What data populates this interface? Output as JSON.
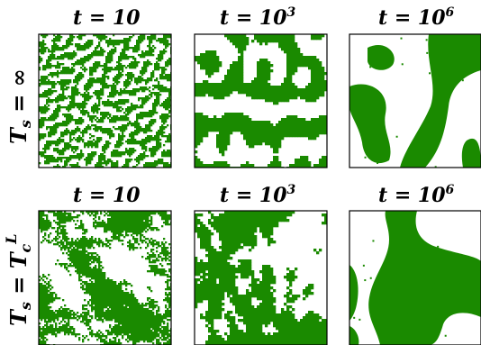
{
  "figure": {
    "colors": {
      "phase": "#1a8a00",
      "background": "#ffffff",
      "frame": "#000000"
    },
    "columns": [
      {
        "label_base": "t = 10",
        "label_exp": ""
      },
      {
        "label_base": "t = 10",
        "label_exp": "3"
      },
      {
        "label_base": "t = 10",
        "label_exp": "6"
      }
    ],
    "rows": [
      {
        "label_main": "T",
        "label_sub": "s",
        "label_rest": " = ∞",
        "label_sup": ""
      },
      {
        "label_main": "T",
        "label_sub": "s",
        "label_rest": " = T",
        "label_sub2": "c",
        "label_sup": "L"
      }
    ],
    "panels": [
      {
        "row": 0,
        "col": 0,
        "description_id": "infinite-quench-early",
        "texture": "fine"
      },
      {
        "row": 0,
        "col": 1,
        "description_id": "infinite-quench-mid",
        "texture": "medium"
      },
      {
        "row": 0,
        "col": 2,
        "description_id": "infinite-quench-late",
        "texture": "coarse"
      },
      {
        "row": 1,
        "col": 0,
        "description_id": "critical-quench-early",
        "texture": "critical-fine"
      },
      {
        "row": 1,
        "col": 1,
        "description_id": "critical-quench-mid",
        "texture": "critical-medium"
      },
      {
        "row": 1,
        "col": 2,
        "description_id": "critical-quench-late",
        "texture": "critical-coarse"
      }
    ]
  }
}
